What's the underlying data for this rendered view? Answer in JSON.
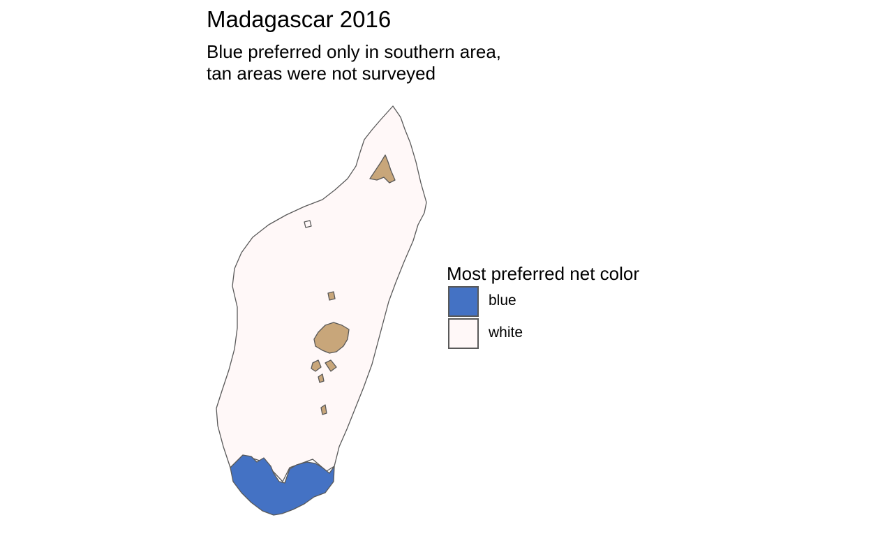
{
  "map": {
    "title": "Madagascar 2016",
    "subtitle_lines": [
      "Blue preferred only in southern area,",
      "tan areas were not surveyed"
    ],
    "colors": {
      "blue": "#4472c4",
      "white": "#fff8f8",
      "not_surveyed": "#c8a67a",
      "border": "#595959"
    }
  },
  "legend": {
    "title": "Most preferred net color",
    "items": [
      {
        "label": "blue",
        "color": "#4472c4"
      },
      {
        "label": "white",
        "color": "#fff8f8"
      }
    ]
  }
}
